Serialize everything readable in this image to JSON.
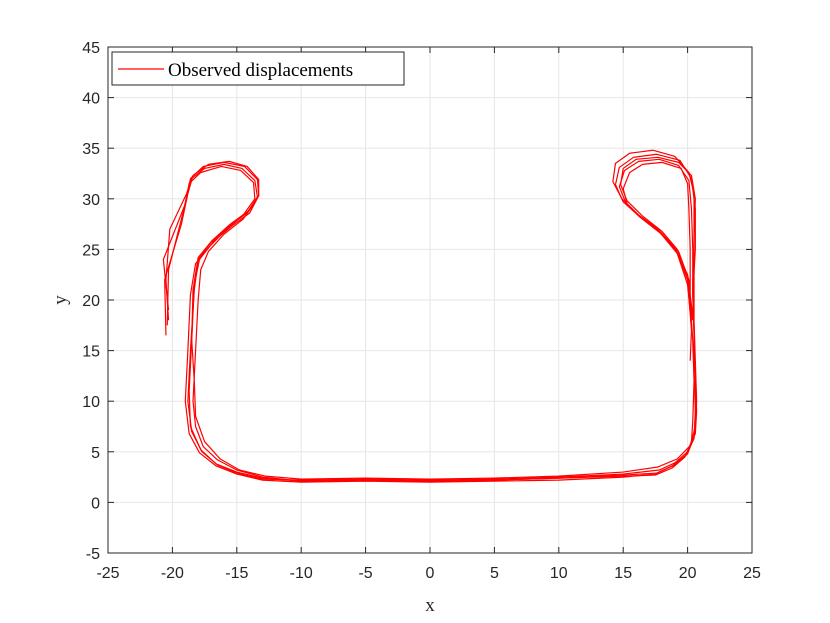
{
  "chart_data": {
    "type": "line",
    "xlabel": "x",
    "ylabel": "y",
    "xlim": [
      -25,
      25
    ],
    "ylim": [
      -5,
      45
    ],
    "xticks": [
      -25,
      -20,
      -15,
      -10,
      -5,
      0,
      5,
      10,
      15,
      20,
      25
    ],
    "yticks": [
      -5,
      0,
      5,
      10,
      15,
      20,
      25,
      30,
      35,
      40,
      45
    ],
    "xtick_labels": [
      "-25",
      "-20",
      "-15",
      "-10",
      "-5",
      "0",
      "5",
      "10",
      "15",
      "20",
      "25"
    ],
    "ytick_labels": [
      "-5",
      "0",
      "5",
      "10",
      "15",
      "20",
      "25",
      "30",
      "35",
      "40",
      "45"
    ],
    "grid": true,
    "legend": {
      "position": "top-left",
      "entries": [
        "Observed displacements"
      ]
    },
    "colors": {
      "series": "#ff0000",
      "axis": "#262626",
      "grid": "#e6e6e6"
    },
    "series": [
      {
        "name": "Observed displacements",
        "laps": [
          [
            [
              -13.5,
              29.8
            ],
            [
              -14.5,
              28.0
            ],
            [
              -16.0,
              26.5
            ],
            [
              -17.2,
              24.8
            ],
            [
              -17.8,
              23.0
            ],
            [
              -18.0,
              20.0
            ],
            [
              -18.2,
              15.0
            ],
            [
              -18.4,
              10.0
            ],
            [
              -18.2,
              7.5
            ],
            [
              -17.6,
              5.5
            ],
            [
              -16.5,
              4.2
            ],
            [
              -15.0,
              3.2
            ],
            [
              -13.0,
              2.5
            ],
            [
              -10.0,
              2.1
            ],
            [
              -5.0,
              2.2
            ],
            [
              0.0,
              2.1
            ],
            [
              5.0,
              2.2
            ],
            [
              10.0,
              2.4
            ],
            [
              15.0,
              2.6
            ],
            [
              17.5,
              2.7
            ],
            [
              18.8,
              3.4
            ],
            [
              19.8,
              4.5
            ],
            [
              20.3,
              6.0
            ],
            [
              20.4,
              8.0
            ],
            [
              20.5,
              12.0
            ],
            [
              20.4,
              16.0
            ],
            [
              20.2,
              20.0
            ],
            [
              20.2,
              25.0
            ],
            [
              20.1,
              29.0
            ],
            [
              20.0,
              31.5
            ],
            [
              19.5,
              33.0
            ],
            [
              18.0,
              33.6
            ],
            [
              16.5,
              33.4
            ],
            [
              15.5,
              32.6
            ],
            [
              15.0,
              31.0
            ],
            [
              15.3,
              29.5
            ],
            [
              16.5,
              28.0
            ],
            [
              18.0,
              26.5
            ],
            [
              19.3,
              24.8
            ],
            [
              20.1,
              22.0
            ],
            [
              20.3,
              18.0
            ]
          ],
          [
            [
              -20.3,
              18.0
            ],
            [
              -20.5,
              22.0
            ],
            [
              -20.2,
              27.0
            ],
            [
              -18.9,
              30.5
            ],
            [
              -18.5,
              32.0
            ],
            [
              -17.5,
              33.0
            ],
            [
              -16.0,
              33.4
            ],
            [
              -14.6,
              33.0
            ],
            [
              -13.6,
              31.8
            ],
            [
              -13.4,
              30.2
            ],
            [
              -14.2,
              28.6
            ],
            [
              -15.6,
              27.3
            ],
            [
              -17.0,
              25.7
            ],
            [
              -18.0,
              24.0
            ],
            [
              -18.3,
              21.0
            ],
            [
              -18.6,
              15.0
            ],
            [
              -18.8,
              10.0
            ],
            [
              -18.5,
              7.0
            ],
            [
              -17.7,
              5.0
            ],
            [
              -16.5,
              3.7
            ],
            [
              -15.0,
              2.9
            ],
            [
              -13.0,
              2.3
            ],
            [
              -10.0,
              2.2
            ],
            [
              -5.0,
              2.3
            ],
            [
              0.0,
              2.2
            ],
            [
              5.0,
              2.3
            ],
            [
              10.0,
              2.5
            ],
            [
              15.0,
              2.8
            ],
            [
              17.8,
              3.2
            ],
            [
              19.0,
              3.9
            ],
            [
              20.0,
              5.0
            ],
            [
              20.6,
              6.8
            ],
            [
              20.7,
              9.0
            ],
            [
              20.6,
              13.0
            ],
            [
              20.5,
              17.0
            ],
            [
              20.4,
              21.0
            ],
            [
              20.4,
              25.0
            ],
            [
              20.3,
              29.0
            ],
            [
              20.1,
              31.8
            ],
            [
              19.3,
              33.3
            ],
            [
              17.8,
              33.9
            ],
            [
              16.2,
              33.7
            ],
            [
              15.1,
              32.8
            ],
            [
              14.7,
              31.2
            ],
            [
              15.2,
              29.6
            ],
            [
              16.4,
              28.1
            ],
            [
              17.9,
              26.6
            ],
            [
              19.2,
              24.6
            ],
            [
              20.0,
              21.5
            ],
            [
              20.3,
              17.5
            ]
          ],
          [
            [
              -20.4,
              17.5
            ],
            [
              -20.3,
              23.0
            ],
            [
              -19.1,
              29.0
            ],
            [
              -18.7,
              31.5
            ],
            [
              -17.8,
              32.6
            ],
            [
              -16.2,
              33.2
            ],
            [
              -14.7,
              32.8
            ],
            [
              -13.7,
              31.6
            ],
            [
              -13.6,
              30.0
            ],
            [
              -14.5,
              28.4
            ],
            [
              -15.8,
              27.0
            ],
            [
              -17.1,
              25.3
            ],
            [
              -18.2,
              23.6
            ],
            [
              -18.6,
              20.5
            ],
            [
              -18.8,
              15.0
            ],
            [
              -19.0,
              10.0
            ],
            [
              -18.7,
              6.8
            ],
            [
              -17.9,
              4.9
            ],
            [
              -16.6,
              3.6
            ],
            [
              -15.0,
              2.8
            ],
            [
              -13.0,
              2.2
            ],
            [
              -10.0,
              2.0
            ],
            [
              -5.0,
              2.1
            ],
            [
              0.0,
              2.0
            ],
            [
              5.0,
              2.1
            ],
            [
              10.0,
              2.2
            ],
            [
              15.0,
              2.5
            ],
            [
              17.5,
              2.8
            ],
            [
              18.8,
              3.6
            ],
            [
              19.9,
              4.7
            ],
            [
              20.5,
              6.3
            ],
            [
              20.6,
              8.5
            ],
            [
              20.6,
              12.5
            ],
            [
              20.5,
              16.5
            ],
            [
              20.4,
              20.5
            ],
            [
              20.6,
              25.0
            ],
            [
              20.6,
              29.0
            ],
            [
              20.3,
              32.0
            ],
            [
              19.4,
              33.8
            ],
            [
              17.6,
              34.4
            ],
            [
              15.8,
              34.1
            ],
            [
              14.7,
              33.1
            ],
            [
              14.4,
              31.4
            ],
            [
              15.0,
              29.7
            ],
            [
              16.3,
              28.2
            ],
            [
              17.8,
              26.8
            ],
            [
              19.1,
              24.9
            ],
            [
              20.0,
              22.0
            ],
            [
              20.4,
              18.0
            ]
          ],
          [
            [
              -20.5,
              16.5
            ],
            [
              -20.6,
              22.0
            ],
            [
              -19.3,
              27.5
            ],
            [
              -18.8,
              30.5
            ],
            [
              -18.4,
              32.3
            ],
            [
              -17.2,
              33.4
            ],
            [
              -15.6,
              33.7
            ],
            [
              -14.2,
              33.2
            ],
            [
              -13.3,
              31.9
            ],
            [
              -13.3,
              30.3
            ],
            [
              -14.1,
              28.8
            ],
            [
              -15.5,
              27.5
            ],
            [
              -16.9,
              25.9
            ],
            [
              -18.0,
              24.2
            ],
            [
              -18.4,
              21.0
            ],
            [
              -18.5,
              16.0
            ],
            [
              -18.3,
              12.0
            ],
            [
              -18.2,
              8.5
            ],
            [
              -17.5,
              6.0
            ],
            [
              -16.3,
              4.3
            ],
            [
              -14.8,
              3.2
            ],
            [
              -12.8,
              2.6
            ],
            [
              -10.0,
              2.3
            ],
            [
              -5.0,
              2.4
            ],
            [
              0.0,
              2.3
            ],
            [
              5.0,
              2.4
            ],
            [
              10.0,
              2.6
            ],
            [
              15.0,
              3.0
            ],
            [
              17.7,
              3.5
            ],
            [
              19.2,
              4.3
            ],
            [
              20.2,
              5.6
            ],
            [
              20.6,
              7.5
            ],
            [
              20.7,
              10.0
            ],
            [
              20.6,
              14.0
            ],
            [
              20.5,
              18.0
            ],
            [
              20.5,
              23.0
            ],
            [
              20.5,
              27.0
            ],
            [
              20.5,
              30.5
            ],
            [
              20.1,
              32.6
            ],
            [
              19.0,
              34.2
            ],
            [
              17.3,
              34.8
            ],
            [
              15.5,
              34.5
            ],
            [
              14.4,
              33.5
            ],
            [
              14.2,
              31.7
            ],
            [
              14.9,
              30.0
            ],
            [
              16.2,
              28.4
            ],
            [
              17.7,
              27.0
            ],
            [
              19.0,
              25.2
            ],
            [
              20.0,
              22.5
            ],
            [
              20.4,
              18.5
            ]
          ],
          [
            [
              -20.3,
              19.0
            ],
            [
              -20.7,
              24.0
            ],
            [
              -19.0,
              29.5
            ],
            [
              -18.6,
              32.0
            ],
            [
              -17.6,
              33.2
            ],
            [
              -16.0,
              33.6
            ],
            [
              -14.4,
              33.2
            ],
            [
              -13.4,
              31.9
            ],
            [
              -13.3,
              30.3
            ],
            [
              -14.0,
              28.6
            ],
            [
              -15.4,
              27.3
            ],
            [
              -16.8,
              25.8
            ],
            [
              -17.9,
              24.0
            ],
            [
              -18.3,
              21.5
            ],
            [
              -18.5,
              16.0
            ],
            [
              -18.7,
              11.0
            ],
            [
              -18.6,
              7.5
            ],
            [
              -17.8,
              5.2
            ],
            [
              -16.6,
              3.8
            ],
            [
              -15.0,
              3.0
            ],
            [
              -13.0,
              2.4
            ],
            [
              -10.0,
              2.1
            ],
            [
              -5.0,
              2.2
            ],
            [
              0.0,
              2.1
            ],
            [
              5.0,
              2.2
            ],
            [
              10.0,
              2.4
            ],
            [
              15.0,
              2.7
            ],
            [
              17.6,
              2.9
            ],
            [
              19.0,
              3.7
            ],
            [
              20.0,
              4.8
            ],
            [
              20.5,
              6.5
            ],
            [
              20.6,
              9.0
            ],
            [
              20.5,
              13.0
            ],
            [
              20.5,
              17.0
            ],
            [
              20.4,
              21.0
            ],
            [
              20.5,
              26.0
            ],
            [
              20.6,
              30.0
            ],
            [
              20.3,
              32.3
            ],
            [
              19.3,
              33.6
            ],
            [
              17.7,
              34.1
            ],
            [
              16.0,
              33.9
            ],
            [
              15.0,
              33.0
            ],
            [
              14.8,
              31.4
            ],
            [
              15.3,
              29.8
            ],
            [
              16.5,
              28.3
            ],
            [
              18.0,
              26.8
            ],
            [
              19.2,
              25.0
            ],
            [
              20.0,
              22.0
            ],
            [
              20.3,
              17.0
            ],
            [
              20.2,
              14.0
            ]
          ]
        ]
      }
    ]
  }
}
